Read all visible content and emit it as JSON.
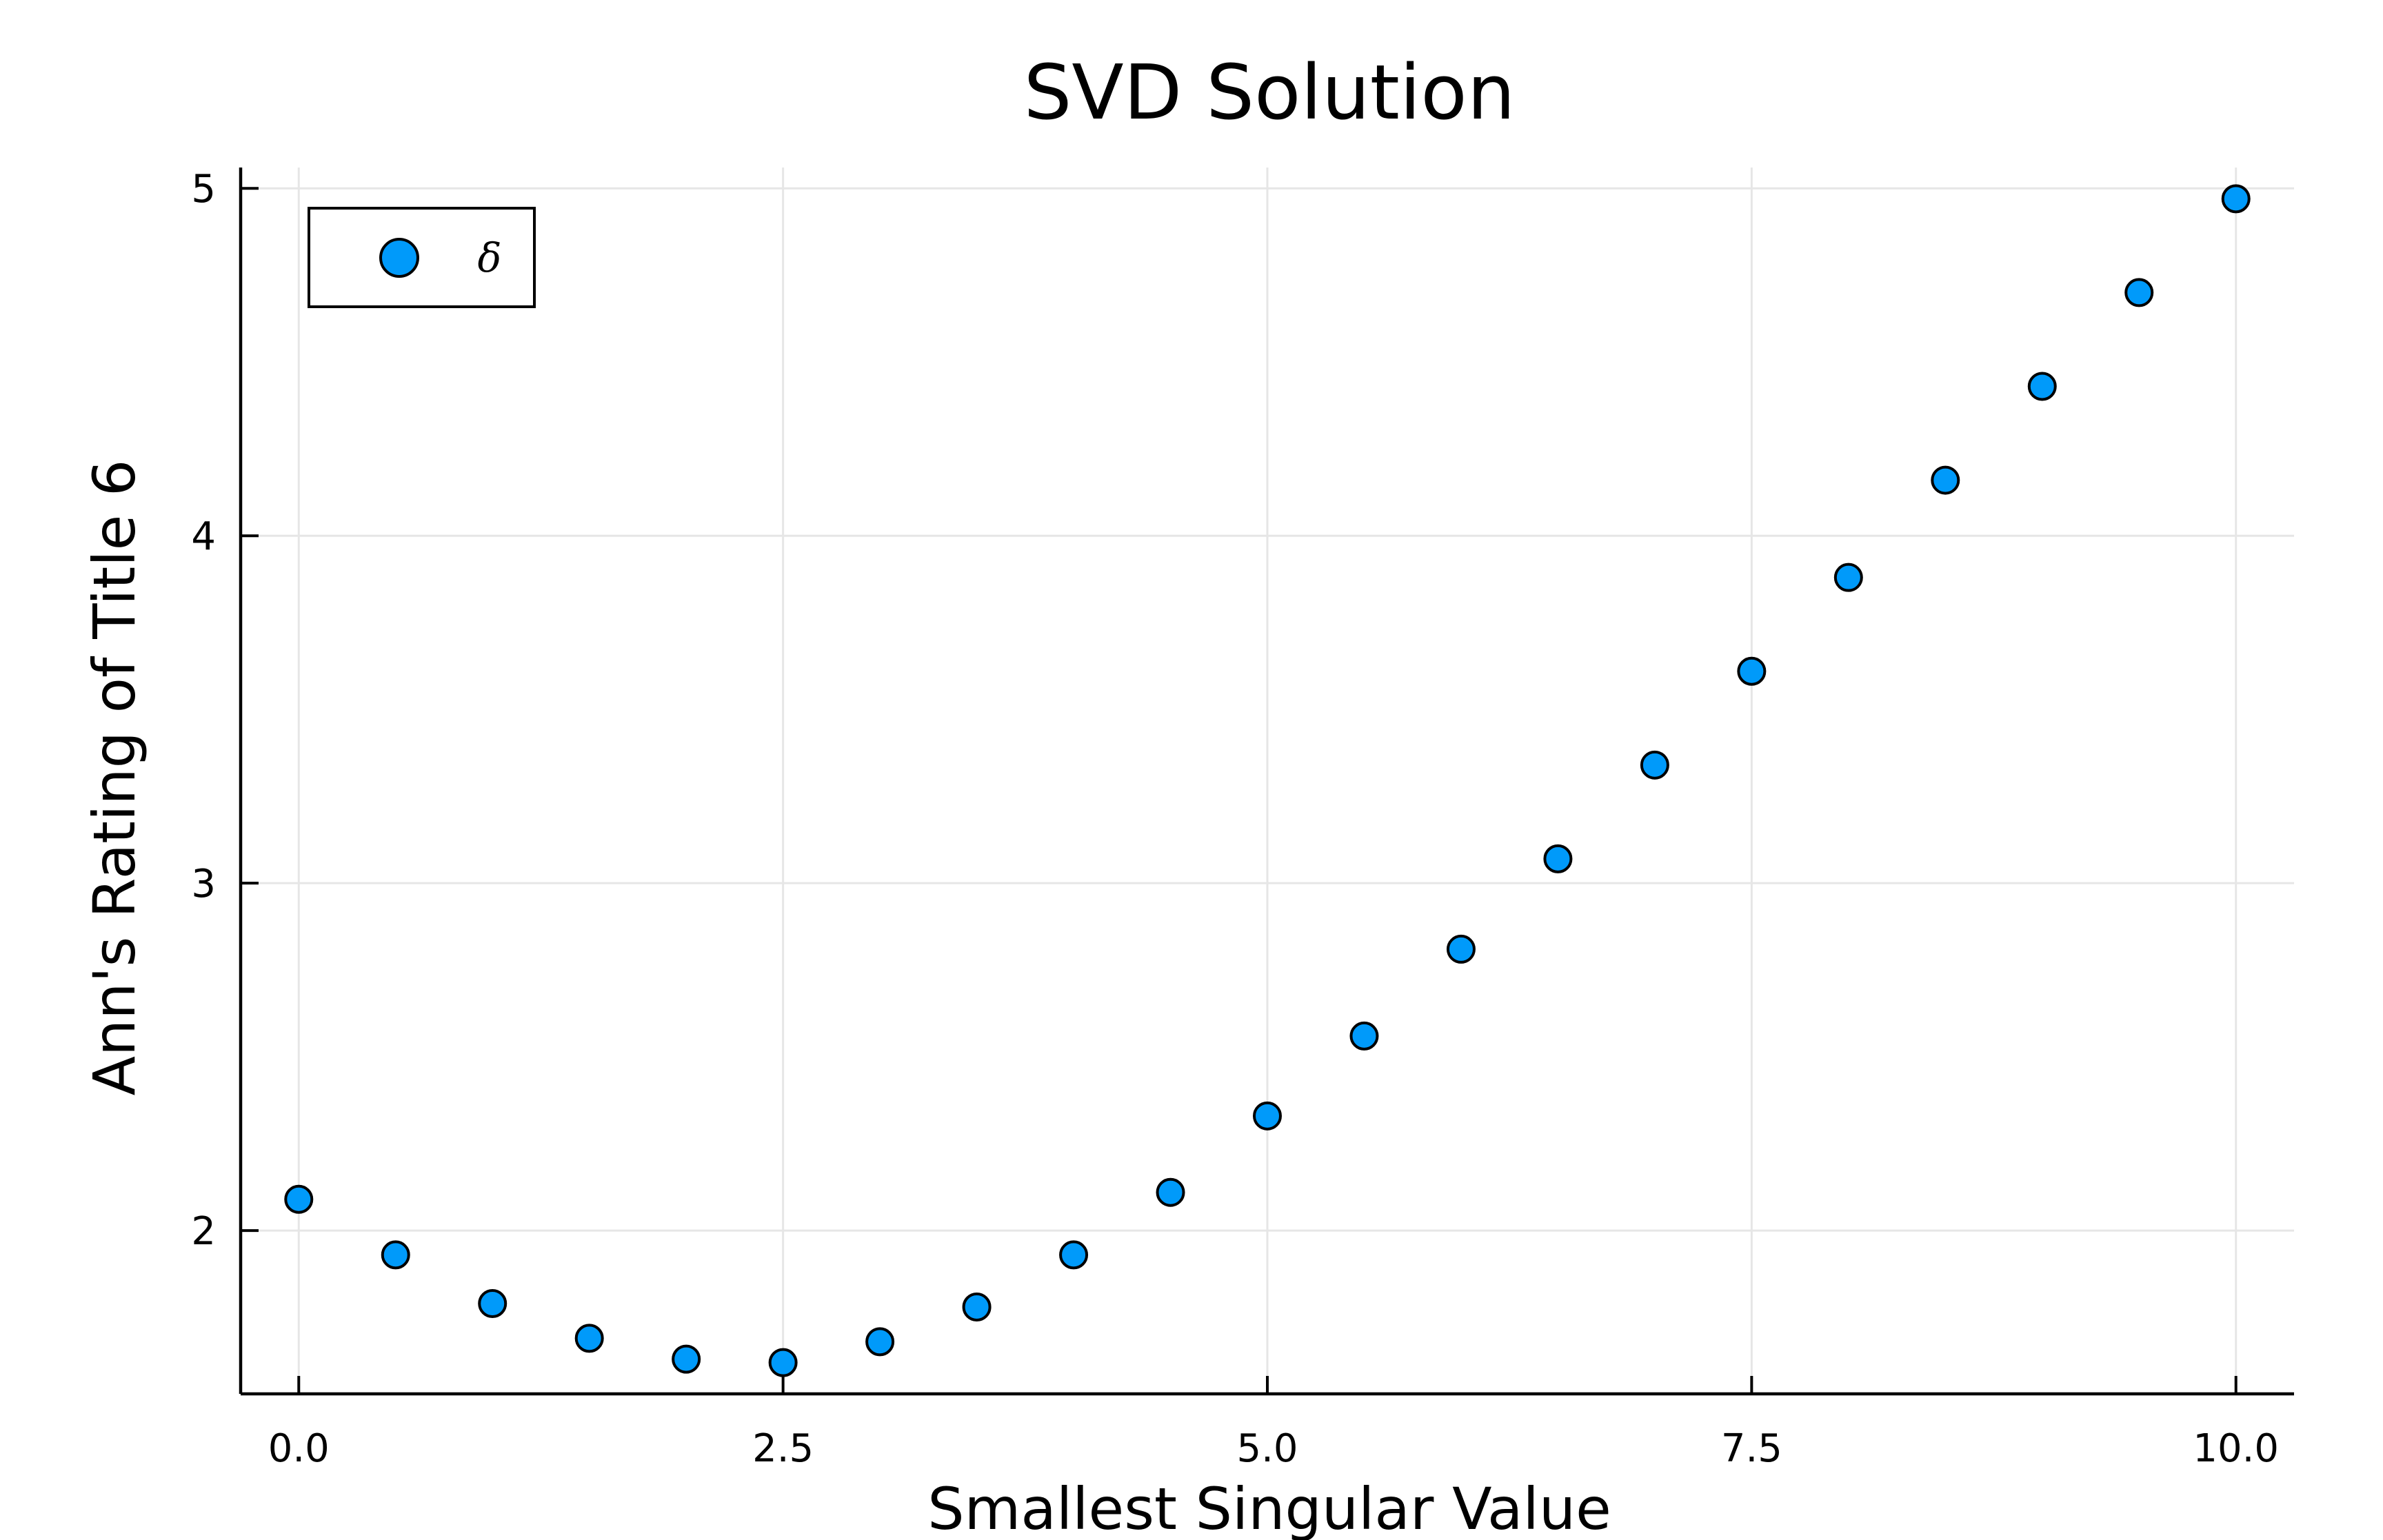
{
  "chart_data": {
    "type": "scatter",
    "title": "SVD Solution",
    "xlabel": "Smallest Singular Value",
    "ylabel": "Ann's Rating of Title 6",
    "xlim": [
      -0.3,
      10.3
    ],
    "ylim": [
      1.53,
      5.06
    ],
    "x_ticks": [
      0.0,
      2.5,
      5.0,
      7.5,
      10.0
    ],
    "x_tick_labels": [
      "0.0",
      "2.5",
      "5.0",
      "7.5",
      "10.0"
    ],
    "y_ticks": [
      2,
      3,
      4,
      5
    ],
    "y_tick_labels": [
      "2",
      "3",
      "4",
      "5"
    ],
    "grid": true,
    "legend": {
      "position": "top-left",
      "entries": [
        "δ"
      ]
    },
    "series": [
      {
        "name": "δ",
        "color": "#009AFA",
        "x": [
          0.0,
          0.5,
          1.0,
          1.5,
          2.0,
          2.5,
          3.0,
          3.5,
          4.0,
          4.5,
          5.0,
          5.5,
          6.0,
          6.5,
          7.0,
          7.5,
          8.0,
          8.5,
          9.0,
          9.5,
          10.0
        ],
        "y": [
          2.09,
          1.93,
          1.79,
          1.69,
          1.63,
          1.62,
          1.68,
          1.78,
          1.93,
          2.11,
          2.33,
          2.56,
          2.81,
          3.07,
          3.34,
          3.61,
          3.88,
          4.16,
          4.43,
          4.7,
          4.97
        ]
      }
    ]
  }
}
